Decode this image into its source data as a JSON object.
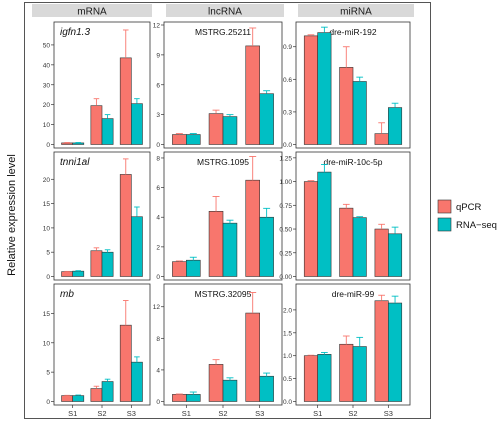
{
  "chart_data": {
    "type": "bar",
    "ylabel": "Relative expression level",
    "categories": [
      "S1",
      "S2",
      "S3"
    ],
    "columns": [
      "mRNA",
      "lncRNA",
      "miRNA"
    ],
    "legend": {
      "placement": "right",
      "entries": [
        {
          "name": "qPCR",
          "color": "#F8766D"
        },
        {
          "name": "RNA−seq",
          "color": "#00BFC4"
        }
      ]
    },
    "panels": [
      {
        "title": "igfn1.3",
        "italic": true,
        "ylim": [
          0,
          60
        ],
        "yticks": [
          "0",
          "10",
          "20",
          "30",
          "40",
          "50"
        ],
        "series": [
          {
            "name": "qPCR",
            "values": [
              0.8,
              19.5,
              43.5
            ],
            "errors": [
              0.2,
              3.5,
              14
            ]
          },
          {
            "name": "RNA−seq",
            "values": [
              0.8,
              13,
              20.5
            ],
            "errors": [
              0.2,
              2,
              2.5
            ]
          }
        ]
      },
      {
        "title": "MSTRG.25211",
        "italic": false,
        "ylim": [
          0,
          12
        ],
        "yticks": [
          "0",
          "3",
          "6",
          "9",
          "12"
        ],
        "series": [
          {
            "name": "qPCR",
            "values": [
              1,
              3.1,
              9.9
            ],
            "errors": [
              0.1,
              0.35,
              1.8
            ]
          },
          {
            "name": "RNA−seq",
            "values": [
              1,
              2.8,
              5.1
            ],
            "errors": [
              0.1,
              0.2,
              0.3
            ]
          }
        ]
      },
      {
        "title": "dre-miR-192",
        "italic": false,
        "ylim": [
          0,
          1.1
        ],
        "yticks": [
          "0.0",
          "0.3",
          "0.6",
          "0.9"
        ],
        "series": [
          {
            "name": "qPCR",
            "values": [
              1.0,
              0.71,
              0.1
            ],
            "errors": [
              0.01,
              0.19,
              0.1
            ]
          },
          {
            "name": "RNA−seq",
            "values": [
              1.03,
              0.58,
              0.34
            ],
            "errors": [
              0.05,
              0.04,
              0.04
            ]
          }
        ]
      },
      {
        "title": "tnni1al",
        "italic": true,
        "ylim": [
          0,
          25
        ],
        "yticks": [
          "0",
          "5",
          "10",
          "15",
          "20"
        ],
        "series": [
          {
            "name": "qPCR",
            "values": [
              1,
              5.3,
              21
            ],
            "errors": [
              0.05,
              0.6,
              3.2
            ]
          },
          {
            "name": "RNA−seq",
            "values": [
              1.1,
              5,
              12.3
            ],
            "errors": [
              0.1,
              0.5,
              2
            ]
          }
        ]
      },
      {
        "title": "MSTRG.1095",
        "italic": false,
        "ylim": [
          0,
          8.2
        ],
        "yticks": [
          "0",
          "2",
          "4",
          "6",
          "8"
        ],
        "series": [
          {
            "name": "qPCR",
            "values": [
              1,
              4.4,
              6.5
            ],
            "errors": [
              0.05,
              1,
              1.6
            ]
          },
          {
            "name": "RNA−seq",
            "values": [
              1.1,
              3.6,
              4
            ],
            "errors": [
              0.2,
              0.2,
              0.6
            ]
          }
        ]
      },
      {
        "title": "dre-miR-10c-5p",
        "italic": false,
        "ylim": [
          0,
          1.28
        ],
        "yticks": [
          "0.00",
          "0.25",
          "0.50",
          "0.75",
          "1.00",
          "1.25"
        ],
        "series": [
          {
            "name": "qPCR",
            "values": [
              1.0,
              0.72,
              0.5
            ],
            "errors": [
              0.01,
              0.04,
              0.05
            ]
          },
          {
            "name": "RNA−seq",
            "values": [
              1.1,
              0.62,
              0.45
            ],
            "errors": [
              0.08,
              0.01,
              0.07
            ]
          }
        ]
      },
      {
        "title": "mb",
        "italic": true,
        "ylim": [
          0,
          19.5
        ],
        "yticks": [
          "0",
          "5",
          "10",
          "15"
        ],
        "series": [
          {
            "name": "qPCR",
            "values": [
              1,
              2.2,
              13
            ],
            "errors": [
              0.05,
              0.4,
              4.2
            ]
          },
          {
            "name": "RNA−seq",
            "values": [
              1,
              3.4,
              6.7
            ],
            "errors": [
              0.1,
              0.4,
              0.9
            ]
          }
        ]
      },
      {
        "title": "MSTRG.32095",
        "italic": false,
        "ylim": [
          0,
          14.5
        ],
        "yticks": [
          "0",
          "4",
          "8",
          "12"
        ],
        "series": [
          {
            "name": "qPCR",
            "values": [
              0.9,
              4.7,
              11.2
            ],
            "errors": [
              0.05,
              0.6,
              2.6
            ]
          },
          {
            "name": "RNA−seq",
            "values": [
              0.9,
              2.7,
              3.2
            ],
            "errors": [
              0.3,
              0.3,
              0.4
            ]
          }
        ]
      },
      {
        "title": "dre-miR-99",
        "italic": false,
        "ylim": [
          0,
          2.5
        ],
        "yticks": [
          "0.0",
          "0.5",
          "1.0",
          "1.5",
          "2.0"
        ],
        "series": [
          {
            "name": "qPCR",
            "values": [
              1.0,
              1.25,
              2.2
            ],
            "errors": [
              0.01,
              0.18,
              0.12
            ]
          },
          {
            "name": "RNA−seq",
            "values": [
              1.03,
              1.2,
              2.15
            ],
            "errors": [
              0.04,
              0.2,
              0.15
            ]
          }
        ]
      }
    ]
  }
}
